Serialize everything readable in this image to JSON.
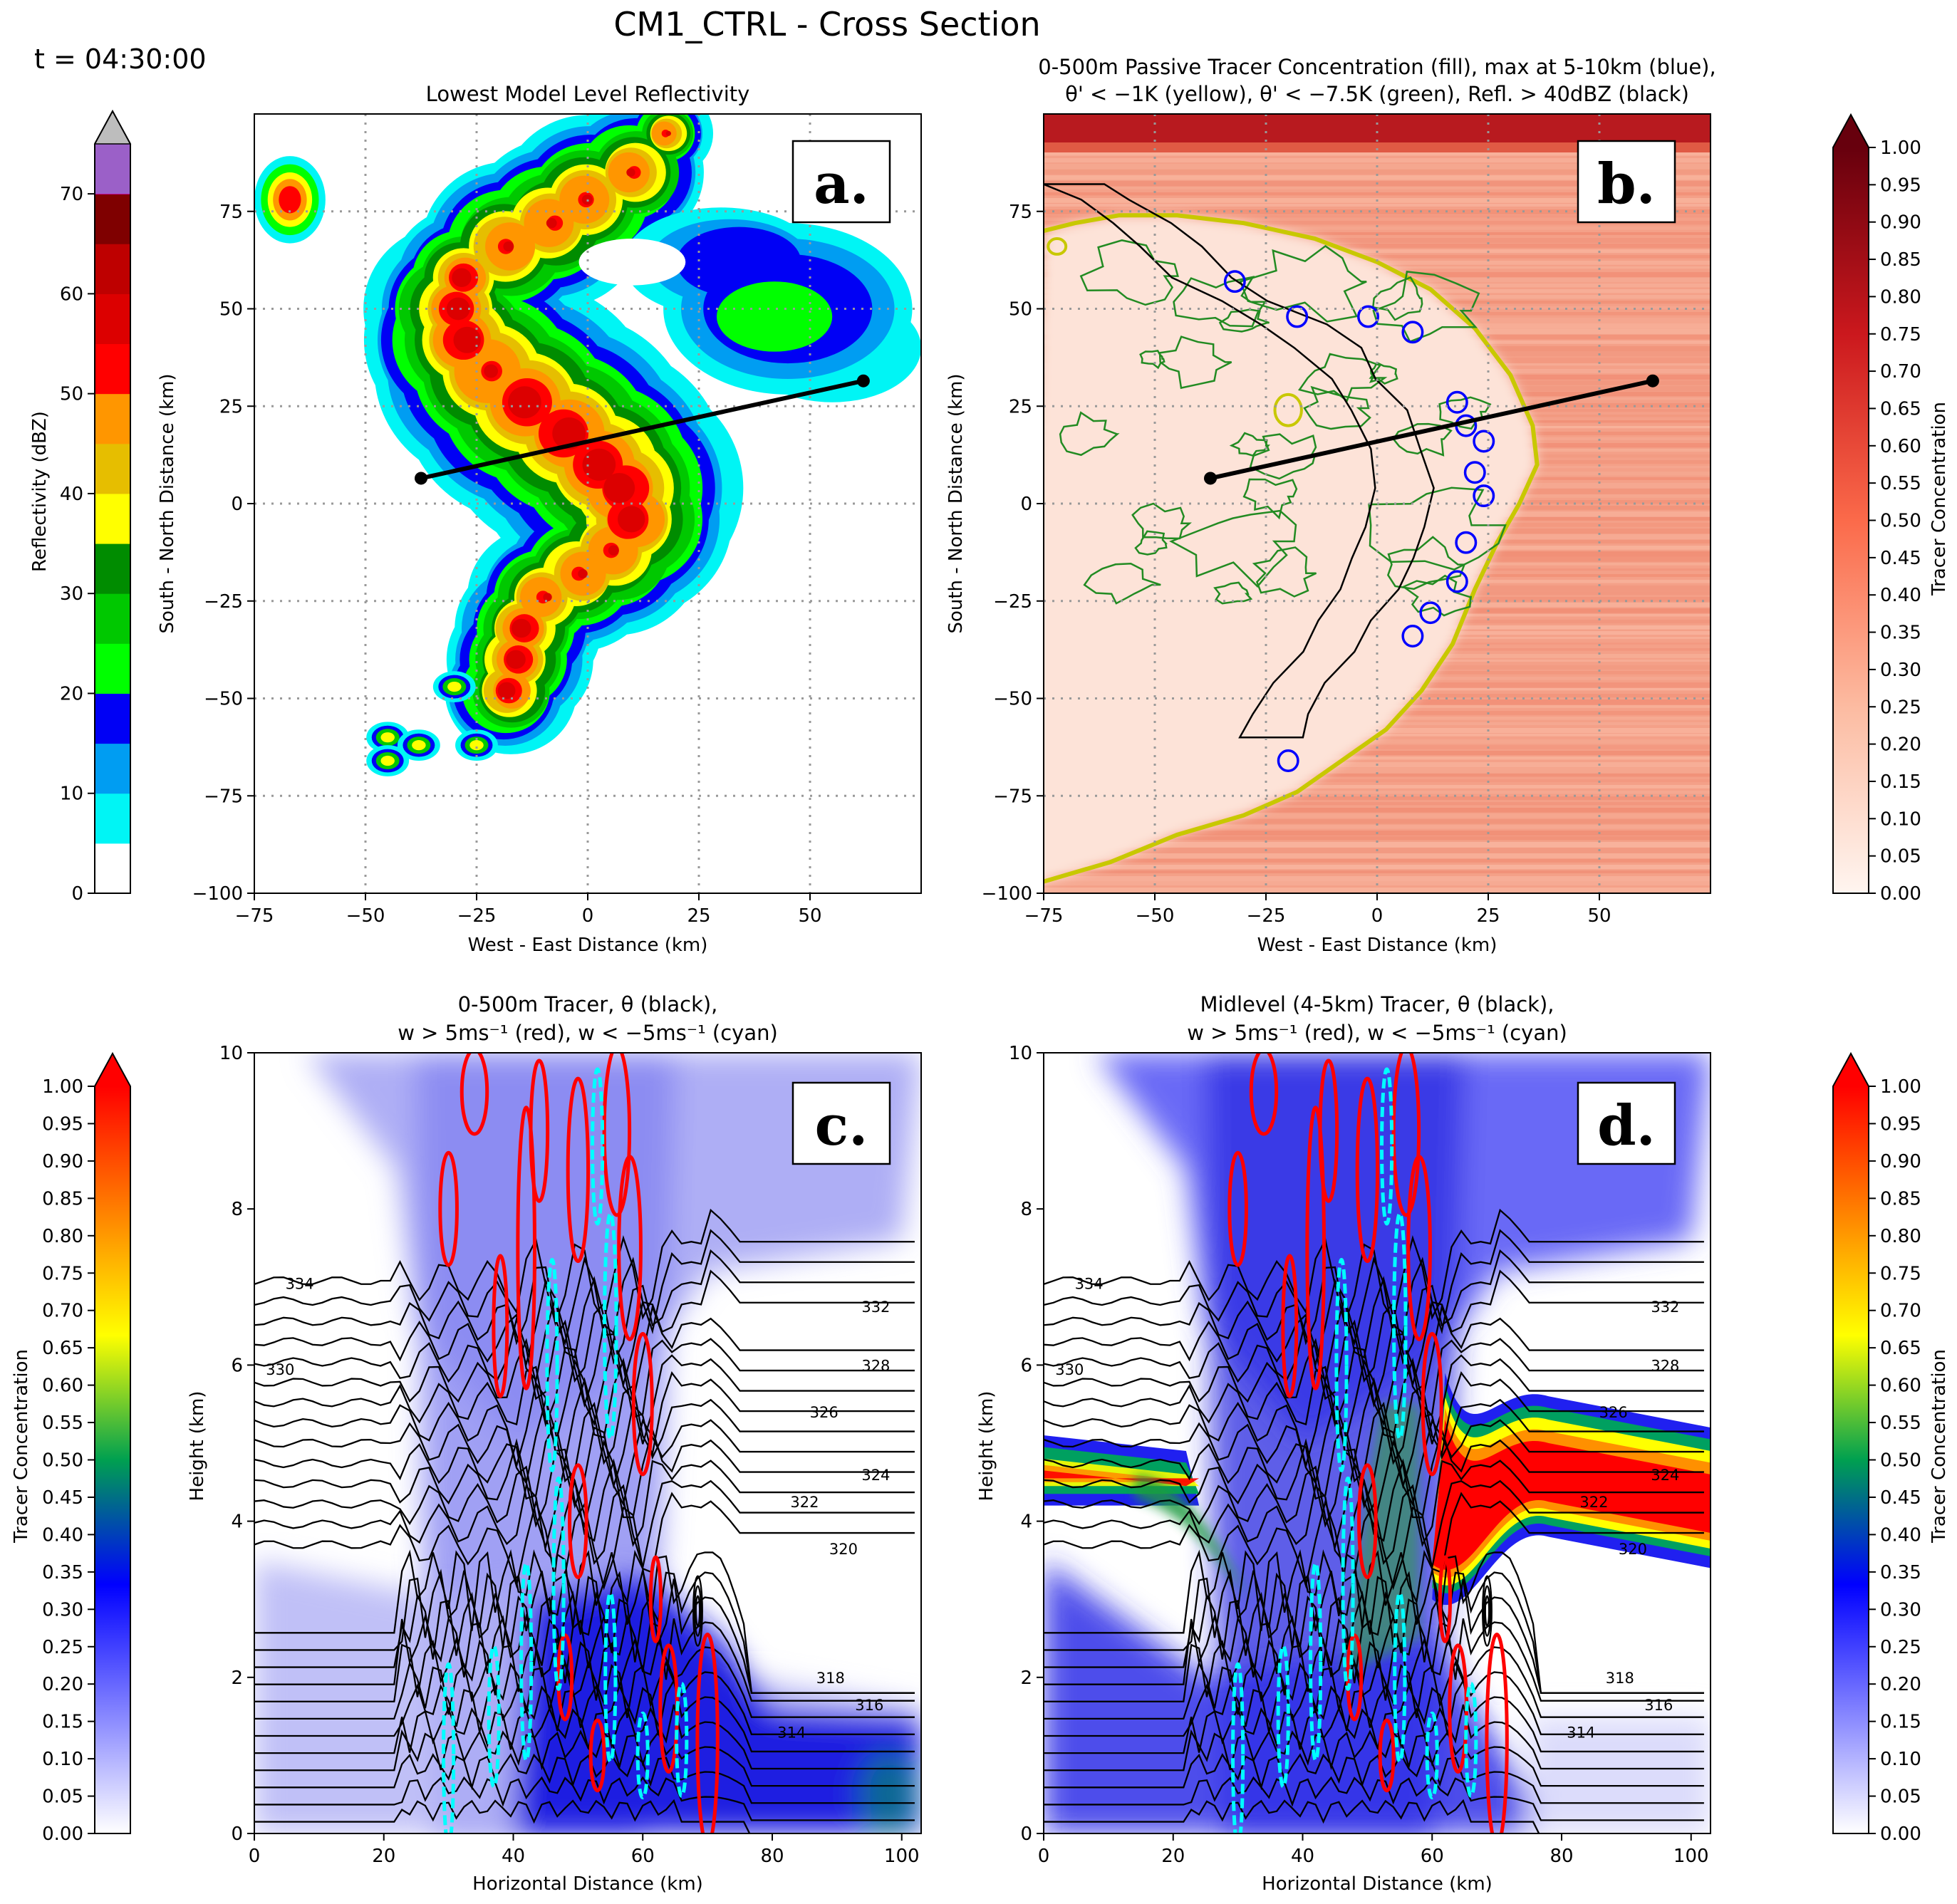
{
  "figure": {
    "title": "CM1_CTRL - Cross Section",
    "time_label": "t = 04:30:00"
  },
  "colors": {
    "refl_levels": [
      0,
      5,
      10,
      15,
      20,
      25,
      30,
      35,
      40,
      45,
      50,
      55,
      60,
      65,
      70,
      75
    ],
    "refl_colors": [
      "#ffffff",
      "#00f5f5",
      "#009df2",
      "#0000f5",
      "#00ff00",
      "#00c800",
      "#008c00",
      "#ffff00",
      "#e6be00",
      "#ff9600",
      "#ff0000",
      "#dc0000",
      "#be0000",
      "#7f0000",
      "#ff00ff",
      "#9b60c8"
    ],
    "refl_over": "#bdbdbd",
    "reds_stops": [
      "#fff5f0",
      "#fcbba1",
      "#fb6a4a",
      "#cb181d",
      "#67000d"
    ],
    "tracer_stops": [
      "#ffffff",
      "#8080ff",
      "#0000ff",
      "#00a050",
      "#ffff00",
      "#ff8000",
      "#ff0000"
    ],
    "trajectory": "#000000",
    "theta_line": "#000000",
    "w_up": "#ff0000",
    "w_down": "#00ffff",
    "contour_blue": "#0000ff",
    "contour_yellow": "#c8c800",
    "contour_green": "#228b22"
  },
  "chart_data": [
    {
      "id": "a",
      "type": "heatmap",
      "panel_letter": "a.",
      "title": "Lowest Model Level Reflectivity",
      "xlabel": "West - East Distance (km)",
      "ylabel": "South - North Distance (km)",
      "xlim": [
        -75,
        75
      ],
      "ylim": [
        -100,
        100
      ],
      "xticks": [
        -75,
        -50,
        -25,
        0,
        25,
        50
      ],
      "yticks": [
        -100,
        -75,
        -50,
        -25,
        0,
        25,
        50,
        75
      ],
      "cross_section_line": [
        [
          -37.5,
          6.5
        ],
        [
          62,
          31.5
        ]
      ],
      "colorbar": {
        "label": "Reflectivity (dBZ)",
        "ticks": [
          0,
          10,
          20,
          30,
          40,
          50,
          60,
          70
        ]
      }
    },
    {
      "id": "b",
      "type": "heatmap",
      "panel_letter": "b.",
      "title_line1": "0-500m Passive Tracer Concentration (fill), max at 5-10km (blue),",
      "title_line2": "θ' < −1K (yellow), θ' < −7.5K (green), Refl. > 40dBZ (black)",
      "xlabel": "West - East Distance (km)",
      "ylabel": "South - North Distance (km)",
      "xlim": [
        -75,
        75
      ],
      "ylim": [
        -100,
        100
      ],
      "xticks": [
        -75,
        -50,
        -25,
        0,
        25,
        50
      ],
      "yticks": [
        -100,
        -75,
        -50,
        -25,
        0,
        25,
        50,
        75
      ],
      "cross_section_line": [
        [
          -37.5,
          6.5
        ],
        [
          62,
          31.5
        ]
      ],
      "colorbar": {
        "label": "Tracer Concentration",
        "ticks": [
          "0.00",
          "0.05",
          "0.10",
          "0.15",
          "0.20",
          "0.25",
          "0.30",
          "0.35",
          "0.40",
          "0.45",
          "0.50",
          "0.55",
          "0.60",
          "0.65",
          "0.70",
          "0.75",
          "0.80",
          "0.85",
          "0.90",
          "0.95",
          "1.00"
        ]
      }
    },
    {
      "id": "c",
      "type": "heatmap",
      "panel_letter": "c.",
      "title_line1": "0-500m Tracer, θ (black),",
      "title_line2": "w > 5ms⁻¹ (red), w < −5ms⁻¹ (cyan)",
      "xlabel": "Horizontal Distance (km)",
      "ylabel": "Height (km)",
      "xlim": [
        0,
        103
      ],
      "ylim": [
        0,
        10
      ],
      "xticks": [
        0,
        20,
        40,
        60,
        80,
        100
      ],
      "yticks": [
        0,
        2,
        4,
        6,
        8,
        10
      ],
      "theta_labels": [
        {
          "text": "334",
          "x": 7,
          "y": 7.05
        },
        {
          "text": "330",
          "x": 4,
          "y": 5.95
        },
        {
          "text": "332",
          "x": 96,
          "y": 6.75
        },
        {
          "text": "328",
          "x": 96,
          "y": 6.0
        },
        {
          "text": "326",
          "x": 88,
          "y": 5.4
        },
        {
          "text": "324",
          "x": 96,
          "y": 4.6
        },
        {
          "text": "322",
          "x": 85,
          "y": 4.25
        },
        {
          "text": "320",
          "x": 91,
          "y": 3.65
        },
        {
          "text": "318",
          "x": 89,
          "y": 2.0
        },
        {
          "text": "316",
          "x": 95,
          "y": 1.65
        },
        {
          "text": "314",
          "x": 83,
          "y": 1.3
        }
      ],
      "colorbar": {
        "label": "Tracer Concentration",
        "ticks": [
          "0.00",
          "0.05",
          "0.10",
          "0.15",
          "0.20",
          "0.25",
          "0.30",
          "0.35",
          "0.40",
          "0.45",
          "0.50",
          "0.55",
          "0.60",
          "0.65",
          "0.70",
          "0.75",
          "0.80",
          "0.85",
          "0.90",
          "0.95",
          "1.00"
        ]
      }
    },
    {
      "id": "d",
      "type": "heatmap",
      "panel_letter": "d.",
      "title_line1": "Midlevel (4-5km) Tracer, θ (black),",
      "title_line2": "w > 5ms⁻¹ (red), w < −5ms⁻¹ (cyan)",
      "xlabel": "Horizontal Distance (km)",
      "ylabel": "Height (km)",
      "xlim": [
        0,
        103
      ],
      "ylim": [
        0,
        10
      ],
      "xticks": [
        0,
        20,
        40,
        60,
        80,
        100
      ],
      "yticks": [
        0,
        2,
        4,
        6,
        8,
        10
      ],
      "theta_labels": [
        {
          "text": "334",
          "x": 7,
          "y": 7.05
        },
        {
          "text": "330",
          "x": 4,
          "y": 5.95
        },
        {
          "text": "332",
          "x": 96,
          "y": 6.75
        },
        {
          "text": "328",
          "x": 96,
          "y": 6.0
        },
        {
          "text": "326",
          "x": 88,
          "y": 5.4
        },
        {
          "text": "324",
          "x": 96,
          "y": 4.6
        },
        {
          "text": "322",
          "x": 85,
          "y": 4.25
        },
        {
          "text": "320",
          "x": 91,
          "y": 3.65
        },
        {
          "text": "318",
          "x": 89,
          "y": 2.0
        },
        {
          "text": "316",
          "x": 95,
          "y": 1.65
        },
        {
          "text": "314",
          "x": 83,
          "y": 1.3
        }
      ],
      "colorbar": {
        "label": "Tracer Concentration",
        "ticks": [
          "0.00",
          "0.05",
          "0.10",
          "0.15",
          "0.20",
          "0.25",
          "0.30",
          "0.35",
          "0.40",
          "0.45",
          "0.50",
          "0.55",
          "0.60",
          "0.65",
          "0.70",
          "0.75",
          "0.80",
          "0.85",
          "0.90",
          "0.95",
          "1.00"
        ]
      }
    }
  ]
}
